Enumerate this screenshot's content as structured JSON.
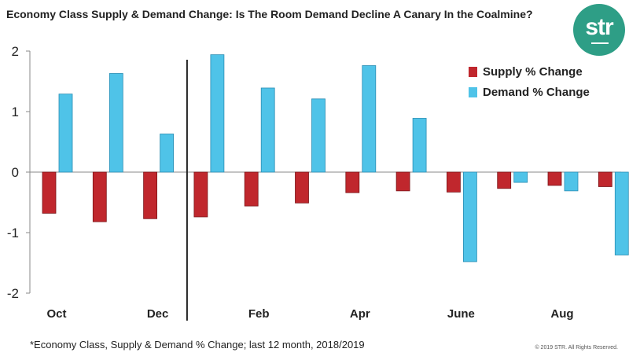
{
  "title": "Economy Class Supply & Demand Change:  Is The Room Demand Decline A Canary In the Coalmine?",
  "logo_text": "str",
  "footnote": "*Economy Class, Supply & Demand % Change; last 12 month, 2018/2019",
  "copyright": "© 2019 STR. All Rights Reserved.",
  "colors": {
    "supply": "#c0272d",
    "demand": "#4fc3e8",
    "logo": "#2e9e86"
  },
  "chart_data": {
    "type": "bar",
    "categories": [
      "Oct",
      "",
      "Dec",
      "",
      "Feb",
      "",
      "Apr",
      "",
      "June",
      "",
      "Aug",
      ""
    ],
    "series": [
      {
        "name": "Supply % Change",
        "values": [
          -0.68,
          -0.82,
          -0.77,
          -0.74,
          -0.56,
          -0.51,
          -0.34,
          -0.31,
          -0.33,
          -0.27,
          -0.22,
          -0.24
        ]
      },
      {
        "name": "Demand % Change",
        "values": [
          1.29,
          1.63,
          0.63,
          1.94,
          1.39,
          1.21,
          1.76,
          0.89,
          -1.48,
          -0.17,
          -0.31,
          -1.37
        ]
      }
    ],
    "ylim": [
      -2,
      2
    ],
    "yticks": [
      "2",
      "1",
      "0",
      "-1",
      "-2"
    ],
    "grid": false,
    "legend_position": "top-right",
    "divider_after_category": "Dec"
  }
}
